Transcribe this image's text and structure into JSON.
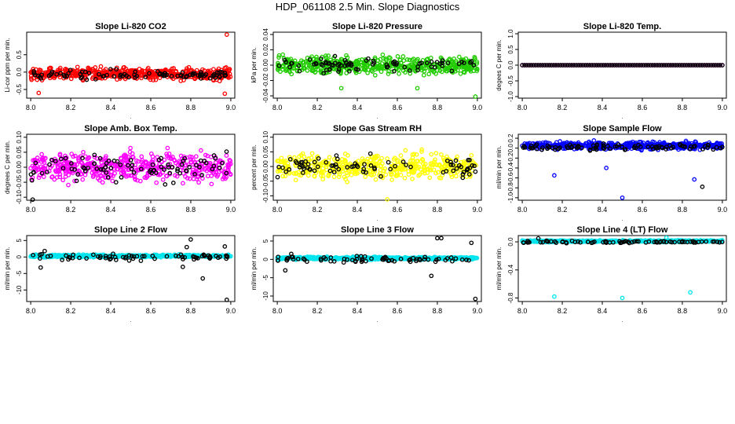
{
  "page_title": "HDP_061108  2.5 Min. Slope Diagnostics",
  "colors": {
    "red": "#ff0000",
    "green": "#22cc00",
    "magenta": "#ff00ff",
    "yellow": "#ffff00",
    "blue": "#0000ff",
    "cyan": "#00e5ee",
    "black": "#000000"
  },
  "chart_data": [
    {
      "type": "scatter",
      "title": "Slope Li-820 CO2",
      "ylabel": "Li-cor ppm per min.",
      "xticks": [
        "8.0",
        "8.2",
        "8.4",
        "8.6",
        "8.8",
        "9.0"
      ],
      "xlim": [
        7.98,
        9.02
      ],
      "yticks": [
        "-0.5",
        "0.0",
        "0.5"
      ],
      "ytick_values": [
        -0.5,
        0.0,
        0.5
      ],
      "ylim": [
        -0.75,
        1.15
      ],
      "series": [
        {
          "name": "red points",
          "color": "red",
          "n": 520,
          "center": -0.05,
          "spread": 0.16,
          "outliers": [
            [
              8.98,
              1.08
            ],
            [
              8.04,
              -0.6
            ],
            [
              8.97,
              -0.62
            ]
          ]
        },
        {
          "name": "black points",
          "color": "black",
          "n": 90,
          "center": -0.08,
          "spread": 0.13,
          "outliers": []
        }
      ]
    },
    {
      "type": "scatter",
      "title": "Slope Li-820 Pressure",
      "ylabel": "kPa per min.",
      "xticks": [
        "8.0",
        "8.2",
        "8.4",
        "8.6",
        "8.8",
        "9.0"
      ],
      "xlim": [
        7.98,
        9.02
      ],
      "yticks": [
        "-0.04",
        "-0.02",
        "0.00",
        "0.02",
        "0.04"
      ],
      "ytick_values": [
        -0.04,
        -0.02,
        0.0,
        0.02,
        0.04
      ],
      "ylim": [
        -0.043,
        0.043
      ],
      "series": [
        {
          "name": "green points",
          "color": "green",
          "n": 500,
          "center": 0.0,
          "spread": 0.011,
          "outliers": [
            [
              8.99,
              -0.041
            ],
            [
              8.7,
              -0.03
            ],
            [
              8.32,
              -0.03
            ]
          ]
        },
        {
          "name": "black points",
          "color": "black",
          "n": 80,
          "center": 0.0,
          "spread": 0.008,
          "outliers": []
        }
      ]
    },
    {
      "type": "scatter",
      "title": "Slope Li-820 Temp.",
      "ylabel": "degees C per min.",
      "xticks": [
        "8.0",
        "8.2",
        "8.4",
        "8.6",
        "8.8",
        "9.0"
      ],
      "xlim": [
        7.98,
        9.02
      ],
      "yticks": [
        "-1.0",
        "-0.5",
        "0.0",
        "0.5",
        "1.0"
      ],
      "ytick_values": [
        -1.0,
        -0.5,
        0.0,
        0.5,
        1.0
      ],
      "ylim": [
        -1.05,
        1.05
      ],
      "series": [
        {
          "name": "magenta points",
          "color": "magenta",
          "n": 90,
          "center": 0.0,
          "spread": 0.0,
          "outliers": []
        },
        {
          "name": "black points",
          "color": "black",
          "n": 90,
          "center": 0.0,
          "spread": 0.0,
          "outliers": []
        }
      ]
    },
    {
      "type": "scatter",
      "title": "Slope Amb. Box Temp.",
      "ylabel": "degrees C per min.",
      "xticks": [
        "8.0",
        "8.2",
        "8.4",
        "8.6",
        "8.8",
        "9.0"
      ],
      "xlim": [
        7.98,
        9.02
      ],
      "yticks": [
        "-0.10",
        "-0.05",
        "0.00",
        "0.05",
        "0.10"
      ],
      "ytick_values": [
        -0.1,
        -0.05,
        0.0,
        0.05,
        0.1
      ],
      "ylim": [
        -0.11,
        0.11
      ],
      "series": [
        {
          "name": "magenta points",
          "color": "magenta",
          "n": 500,
          "center": 0.0,
          "spread": 0.045,
          "outliers": []
        },
        {
          "name": "black points",
          "color": "black",
          "n": 90,
          "center": 0.0,
          "spread": 0.045,
          "outliers": [
            [
              8.01,
              -0.108
            ]
          ]
        }
      ]
    },
    {
      "type": "scatter",
      "title": "Slope Gas Stream RH",
      "ylabel": "percent per min.",
      "xticks": [
        "8.0",
        "8.2",
        "8.4",
        "8.6",
        "8.8",
        "9.0"
      ],
      "xlim": [
        7.98,
        9.02
      ],
      "yticks": [
        "-0.10",
        "-0.05",
        "0.00",
        "0.05",
        "0.10"
      ],
      "ytick_values": [
        -0.1,
        -0.05,
        0.0,
        0.05,
        0.1
      ],
      "ylim": [
        -0.115,
        0.11
      ],
      "series": [
        {
          "name": "yellow points",
          "color": "yellow",
          "n": 460,
          "center": 0.0,
          "spread": 0.04,
          "outliers": [
            [
              8.55,
              -0.112
            ]
          ]
        },
        {
          "name": "black points",
          "color": "black",
          "n": 80,
          "center": 0.0,
          "spread": 0.035,
          "outliers": []
        }
      ]
    },
    {
      "type": "scatter",
      "title": "Slope Sample Flow",
      "ylabel": "ml/min per min.",
      "xticks": [
        "8.0",
        "8.2",
        "8.4",
        "8.6",
        "8.8",
        "9.0"
      ],
      "xlim": [
        7.98,
        9.02
      ],
      "yticks": [
        "-1.0",
        "-0.8",
        "-0.6",
        "-0.4",
        "-0.2",
        "0.0",
        "0.2"
      ],
      "ytick_values": [
        -1.0,
        -0.8,
        -0.6,
        -0.4,
        -0.2,
        0.0,
        0.2
      ],
      "ylim": [
        -1.05,
        0.28
      ],
      "series": [
        {
          "name": "blue points",
          "color": "blue",
          "n": 520,
          "center": 0.05,
          "spread": 0.07,
          "outliers": [
            [
              8.5,
              -1.0
            ],
            [
              8.16,
              -0.55
            ],
            [
              8.86,
              -0.63
            ],
            [
              8.42,
              -0.4
            ]
          ]
        },
        {
          "name": "black points",
          "color": "black",
          "n": 90,
          "center": 0.02,
          "spread": 0.06,
          "outliers": [
            [
              8.9,
              -0.78
            ]
          ]
        }
      ]
    },
    {
      "type": "scatter",
      "title": "Slope Line 2 Flow",
      "ylabel": "ml/min per min.",
      "xticks": [
        "8.0",
        "8.2",
        "8.4",
        "8.6",
        "8.8",
        "9.0"
      ],
      "xlim": [
        7.98,
        9.02
      ],
      "yticks": [
        "-10",
        "-5",
        "0",
        "5"
      ],
      "ytick_values": [
        -10,
        -5,
        0,
        5
      ],
      "ylim": [
        -13.5,
        6.5
      ],
      "series": [
        {
          "name": "cyan points",
          "color": "cyan",
          "n": 560,
          "center": 0.3,
          "spread": 0.35,
          "outliers": []
        },
        {
          "name": "black points",
          "color": "black",
          "n": 70,
          "center": 0.0,
          "spread": 0.9,
          "outliers": [
            [
              8.05,
              -3.2
            ],
            [
              8.8,
              5.3
            ],
            [
              8.78,
              3.0
            ],
            [
              8.86,
              -6.5
            ],
            [
              8.76,
              -3.0
            ],
            [
              8.98,
              -13.0
            ],
            [
              8.97,
              3.2
            ],
            [
              8.07,
              1.8
            ]
          ]
        }
      ]
    },
    {
      "type": "scatter",
      "title": "Slope Line 3 Flow",
      "ylabel": "ml/min per min.",
      "xticks": [
        "8.0",
        "8.2",
        "8.4",
        "8.6",
        "8.8",
        "9.0"
      ],
      "xlim": [
        7.98,
        9.02
      ],
      "yticks": [
        "-10",
        "-5",
        "0",
        "5"
      ],
      "ytick_values": [
        -10,
        -5,
        0,
        5
      ],
      "ylim": [
        -11.5,
        6.5
      ],
      "series": [
        {
          "name": "cyan points",
          "color": "cyan",
          "n": 560,
          "center": 0.3,
          "spread": 0.35,
          "outliers": []
        },
        {
          "name": "black points",
          "color": "black",
          "n": 70,
          "center": 0.0,
          "spread": 0.9,
          "outliers": [
            [
              8.04,
              -3.0
            ],
            [
              8.8,
              5.8
            ],
            [
              8.82,
              5.8
            ],
            [
              8.77,
              -4.5
            ],
            [
              8.97,
              4.5
            ],
            [
              8.99,
              -10.8
            ],
            [
              8.07,
              1.5
            ]
          ]
        }
      ]
    },
    {
      "type": "scatter",
      "title": "Slope Line 4 (LT) Flow",
      "ylabel": "ml/min per min.",
      "xticks": [
        "8.0",
        "8.2",
        "8.4",
        "8.6",
        "8.8",
        "9.0"
      ],
      "xlim": [
        7.98,
        9.02
      ],
      "yticks": [
        "-0.8",
        "-0.4",
        "0.0"
      ],
      "ytick_values": [
        -0.8,
        -0.4,
        0.0
      ],
      "ylim": [
        -0.85,
        0.09
      ],
      "series": [
        {
          "name": "cyan points",
          "color": "cyan",
          "n": 560,
          "center": 0.01,
          "spread": 0.012,
          "outliers": [
            [
              8.16,
              -0.78
            ],
            [
              8.5,
              -0.8
            ],
            [
              8.84,
              -0.72
            ],
            [
              8.72,
              0.06
            ]
          ]
        },
        {
          "name": "black points",
          "color": "black",
          "n": 80,
          "center": 0.0,
          "spread": 0.015,
          "outliers": [
            [
              8.08,
              0.05
            ]
          ]
        }
      ]
    }
  ]
}
